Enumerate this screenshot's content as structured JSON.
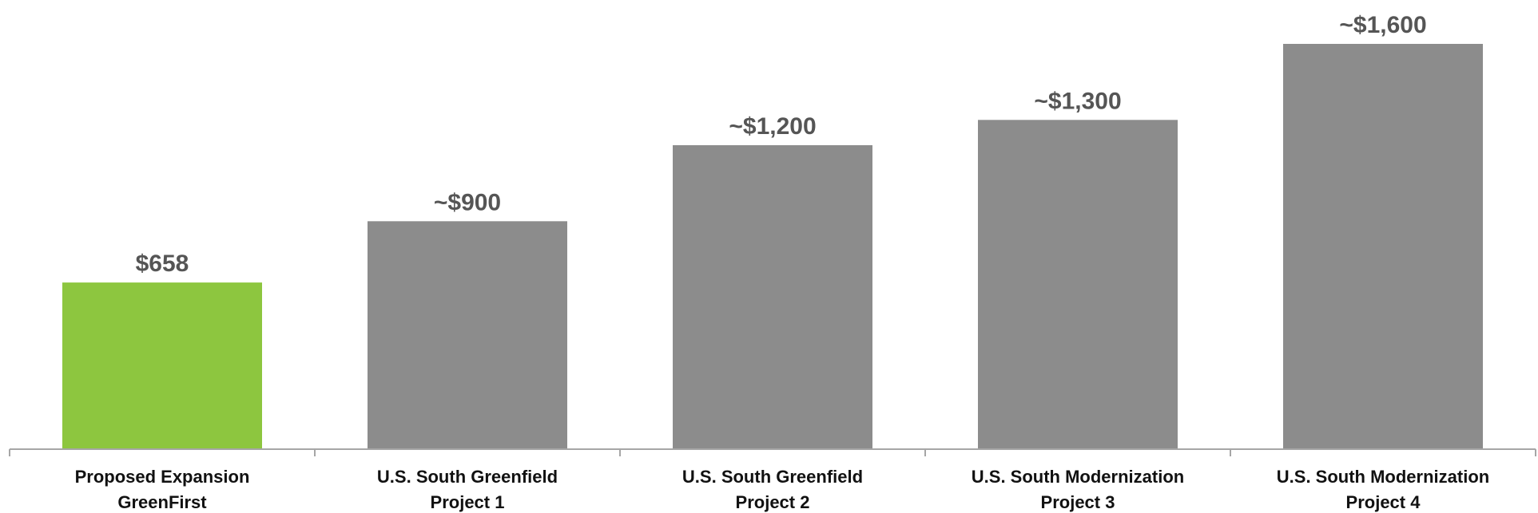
{
  "chart_data": {
    "type": "bar",
    "categories": [
      [
        "Proposed Expansion",
        "GreenFirst"
      ],
      [
        "U.S. South Greenfield",
        "Project 1"
      ],
      [
        "U.S. South Greenfield",
        "Project 2"
      ],
      [
        "U.S. South Modernization",
        "Project 3"
      ],
      [
        "U.S. South Modernization",
        "Project 4"
      ]
    ],
    "values": [
      658,
      900,
      1200,
      1300,
      1600
    ],
    "data_labels": [
      "$658",
      "~$900",
      "~$1,200",
      "~$1,300",
      "~$1,600"
    ],
    "bar_colors": [
      "#8DC63F",
      "#8C8C8C",
      "#8C8C8C",
      "#8C8C8C",
      "#8C8C8C"
    ],
    "axis_color": "#A6A6A6",
    "ylim": [
      0,
      1600
    ],
    "grid": false,
    "legend": "none",
    "title": "",
    "xlabel": "",
    "ylabel": ""
  }
}
